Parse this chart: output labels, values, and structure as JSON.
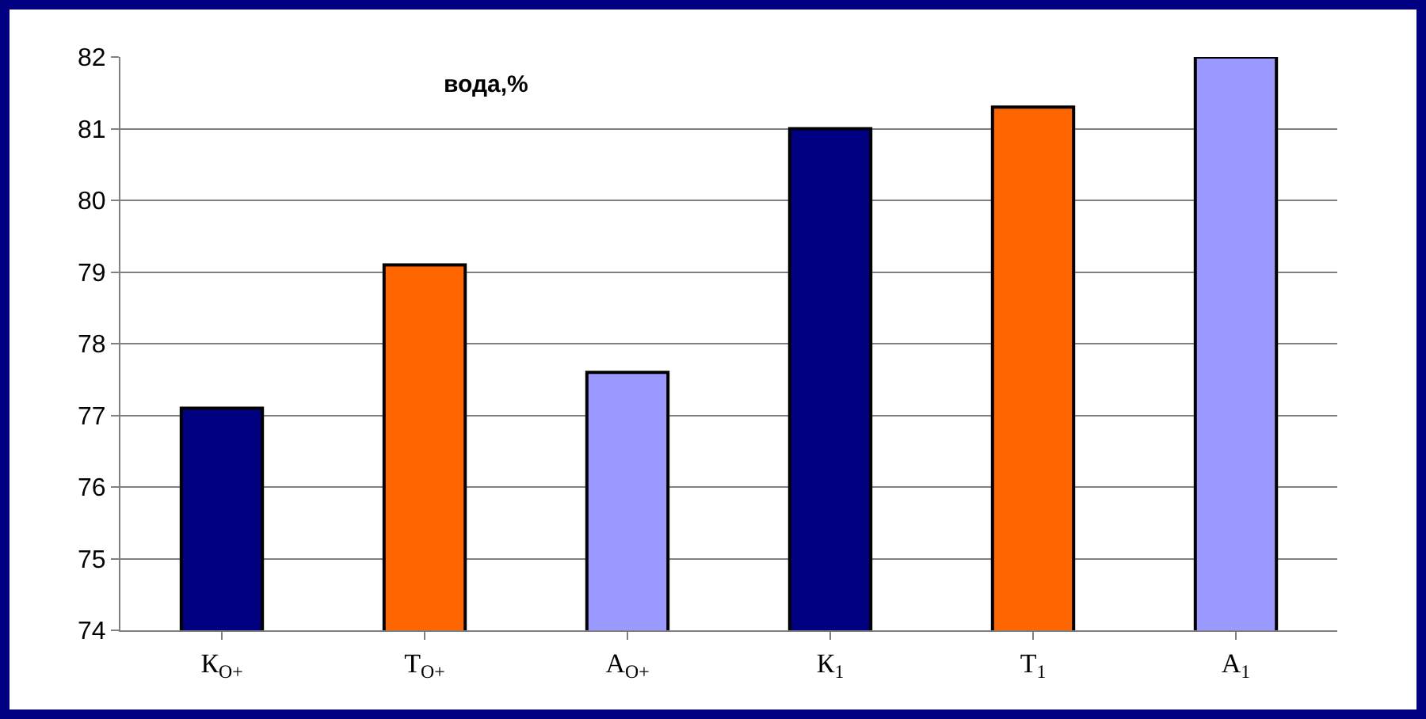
{
  "chart_data": {
    "type": "bar",
    "title": "вода,%",
    "categories": [
      "К$_{О+}$",
      "Т$_{О+}$",
      "А$_{О+}$",
      "К$_{1}$",
      "Т$_{1}$",
      "А$_{1}$"
    ],
    "values": [
      77.1,
      79.1,
      77.6,
      81.0,
      81.3,
      82.0
    ],
    "colors": [
      "#000080",
      "#ff6600",
      "#9999ff",
      "#000080",
      "#ff6600",
      "#9999ff"
    ],
    "ylim": [
      74,
      82
    ],
    "yticks": [
      74,
      75,
      76,
      77,
      78,
      79,
      80,
      81,
      82
    ],
    "grid": "y",
    "legend": false
  }
}
